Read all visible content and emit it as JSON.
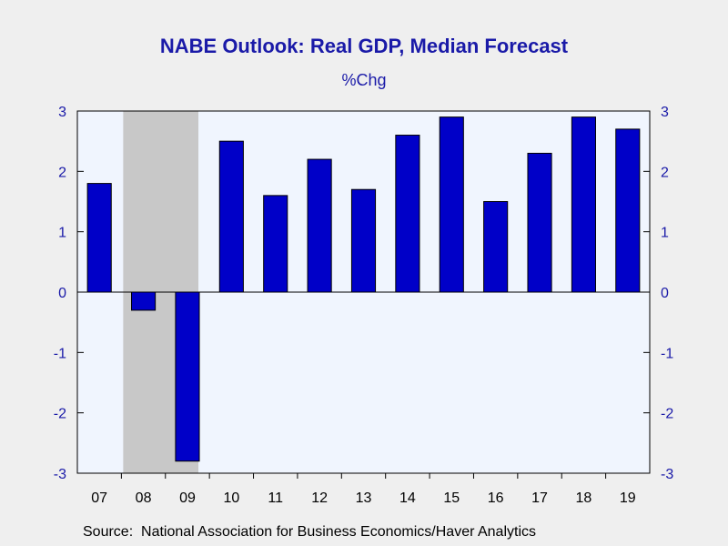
{
  "chart_data": {
    "type": "bar",
    "title": "NABE Outlook: Real GDP, Median Forecast",
    "subtitle": "%Chg",
    "source": "Source:  National Association for Business Economics/Haver Analytics",
    "categories": [
      "07",
      "08",
      "09",
      "10",
      "11",
      "12",
      "13",
      "14",
      "15",
      "16",
      "17",
      "18",
      "19"
    ],
    "values": [
      1.8,
      -0.3,
      -2.8,
      2.5,
      1.6,
      2.2,
      1.7,
      2.6,
      2.9,
      1.5,
      2.3,
      2.9,
      2.7
    ],
    "ylim": [
      -3,
      3
    ],
    "y_ticks": [
      3,
      2,
      1,
      0,
      -1,
      -2,
      -3
    ],
    "recession_shading": {
      "categories": [
        "08",
        "09"
      ]
    },
    "xlabel": "",
    "ylabel": "",
    "grid": false,
    "colors": {
      "bar": "#0000c8",
      "plot_background": "#f0f5fe",
      "page_background": "#efefef",
      "recession": "#c8c8c8",
      "text": "#1a1aa8"
    }
  }
}
